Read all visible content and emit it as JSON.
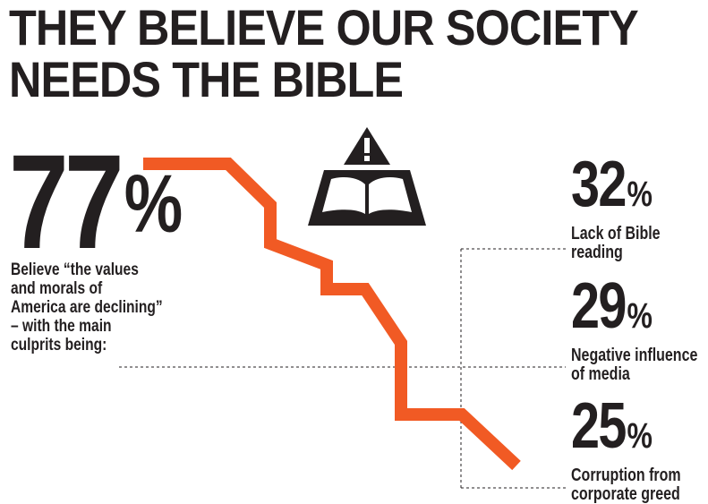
{
  "title": {
    "line1": "THEY BELIEVE OUR SOCIETY",
    "line2": "NEEDS THE BIBLE"
  },
  "headline_stat": {
    "value": "77",
    "unit": "%",
    "text_lines": [
      "Believe “the values",
      "and morals of",
      "America are declining”",
      "– with the main",
      "culprits being:"
    ]
  },
  "icon": "warning-bible-icon",
  "colors": {
    "accent": "#f15a24",
    "text": "#231f20"
  },
  "chart_data": {
    "type": "table",
    "title": "THEY BELIEVE OUR SOCIETY NEEDS THE BIBLE",
    "headline": {
      "value": 77,
      "unit": "%",
      "label": "Believe “the values and morals of America are declining” – with the main culprits being:"
    },
    "categories": [
      "Lack of Bible reading",
      "Negative influence of media",
      "Corruption from corporate greed"
    ],
    "values": [
      32,
      29,
      25
    ],
    "unit": "%"
  },
  "culprits": [
    {
      "value": "32",
      "unit": "%",
      "label_lines": [
        "Lack of Bible",
        "reading"
      ]
    },
    {
      "value": "29",
      "unit": "%",
      "label_lines": [
        "Negative influence",
        "of media"
      ]
    },
    {
      "value": "25",
      "unit": "%",
      "label_lines": [
        "Corruption from",
        "corporate greed"
      ]
    }
  ]
}
